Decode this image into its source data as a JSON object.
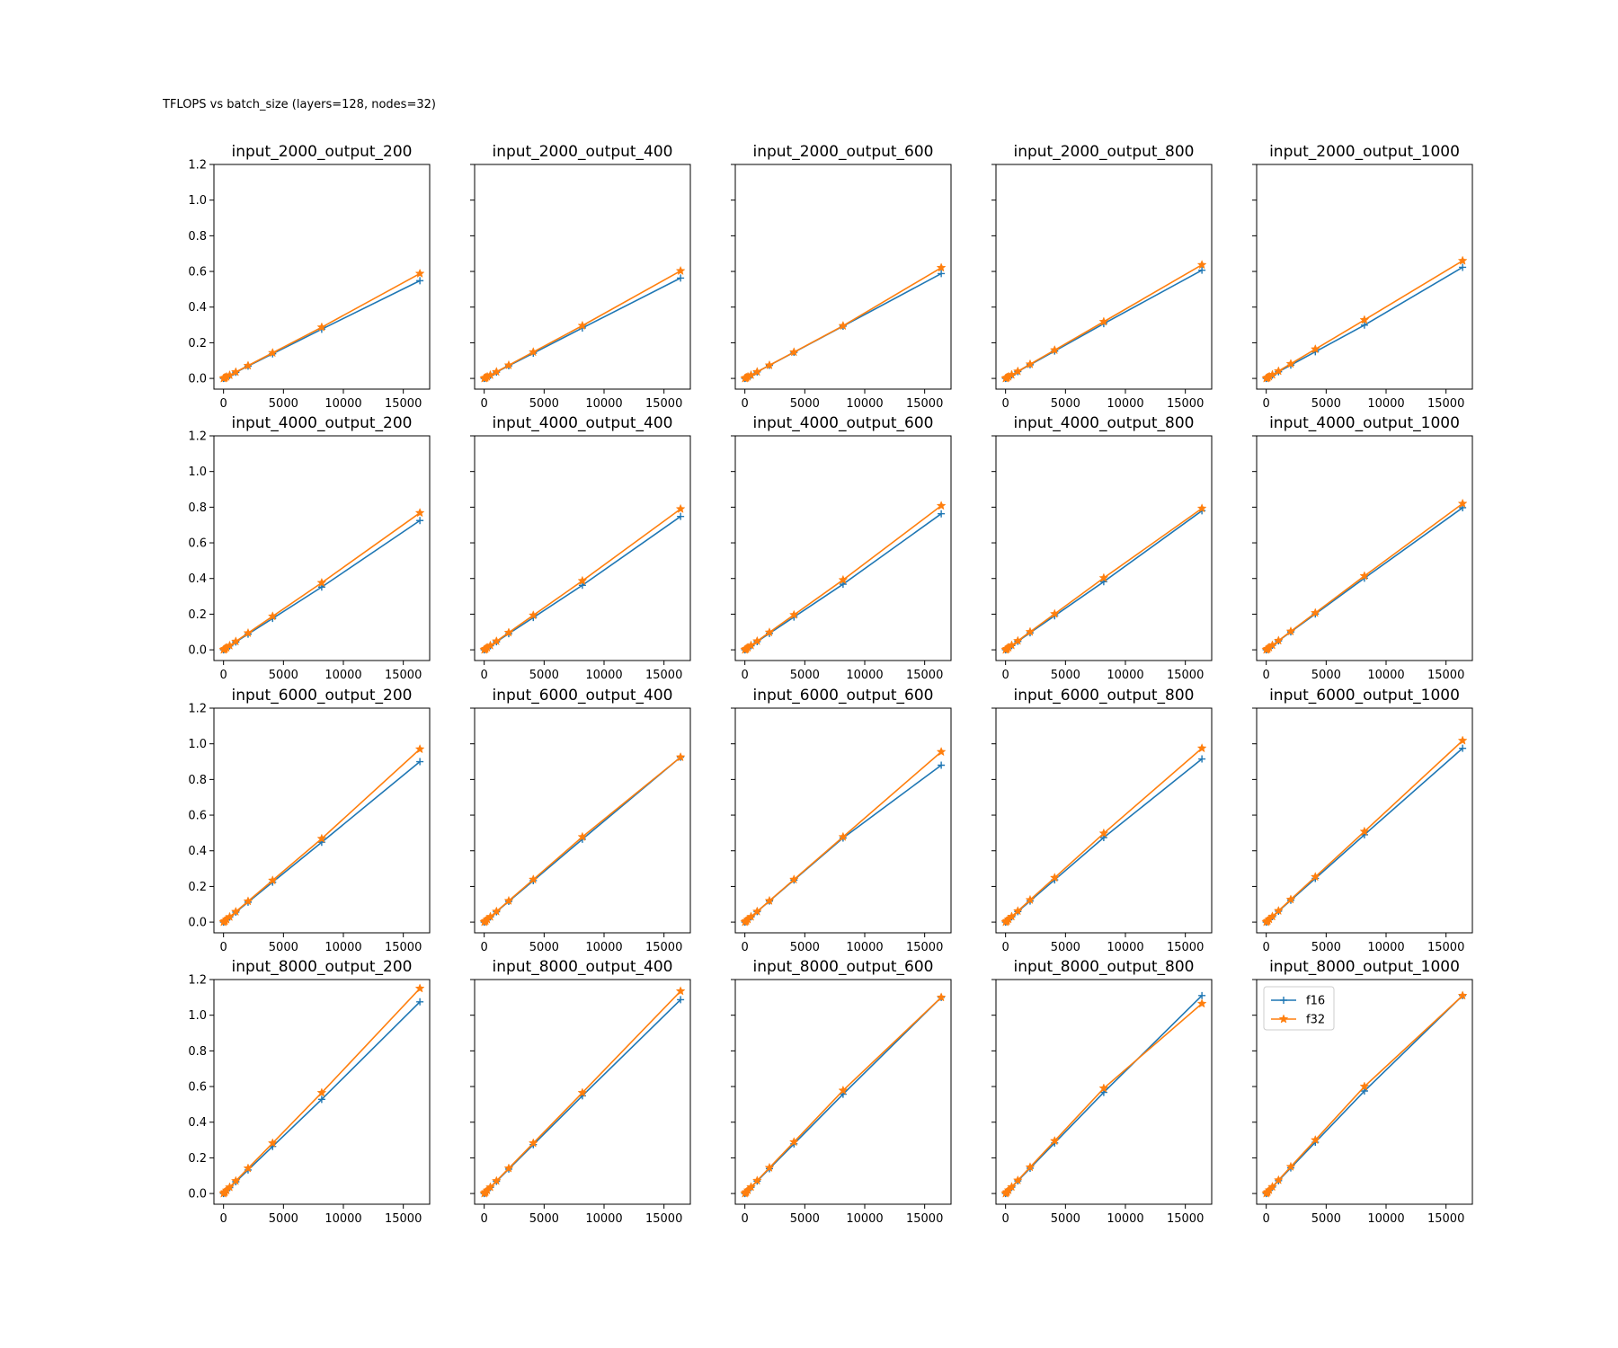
{
  "figure": {
    "suptitle": "TFLOPS vs batch_size (layers=128, nodes=32)"
  },
  "chart_data": {
    "type": "line",
    "grid": false,
    "layout": "4 rows x 5 columns of subplots, shared y axis per row",
    "x": [
      1,
      64,
      128,
      256,
      512,
      1024,
      2048,
      4096,
      8192,
      16384
    ],
    "xlim": [
      -800,
      17200
    ],
    "ylim": [
      -0.06,
      1.2
    ],
    "xticks": [
      0,
      5000,
      10000,
      15000
    ],
    "xtick_labels": [
      "0",
      "5000",
      "10000",
      "15000"
    ],
    "yticks": [
      0.0,
      0.2,
      0.4,
      0.6,
      0.8,
      1.0,
      1.2
    ],
    "ytick_labels": [
      "0.0",
      "0.2",
      "0.4",
      "0.6",
      "0.8",
      "1.0",
      "1.2"
    ],
    "legend": {
      "placement": "upper-left",
      "subplot": "input_8000_output_1000",
      "entries": [
        {
          "label": "f16",
          "color": "#1f77b4",
          "marker": "+"
        },
        {
          "label": "f32",
          "color": "#ff7f0e",
          "marker": "*"
        }
      ]
    },
    "series_names": [
      "f16",
      "f32"
    ],
    "colors": {
      "f16": "#1f77b4",
      "f32": "#ff7f0e"
    },
    "subplots": [
      {
        "title": "input_2000_output_200",
        "f16_end": 0.548,
        "f32_end": 0.588,
        "f16_mid": 0.276,
        "f32_mid": 0.287
      },
      {
        "title": "input_2000_output_400",
        "f16_end": 0.563,
        "f32_end": 0.603,
        "f16_mid": 0.283,
        "f32_mid": 0.296
      },
      {
        "title": "input_2000_output_600",
        "f16_end": 0.588,
        "f32_end": 0.621,
        "f16_mid": 0.293,
        "f32_mid": 0.295
      },
      {
        "title": "input_2000_output_800",
        "f16_end": 0.607,
        "f32_end": 0.637,
        "f16_mid": 0.307,
        "f32_mid": 0.318
      },
      {
        "title": "input_2000_output_1000",
        "f16_end": 0.623,
        "f32_end": 0.66,
        "f16_mid": 0.299,
        "f32_mid": 0.328
      },
      {
        "title": "input_4000_output_200",
        "f16_end": 0.725,
        "f32_end": 0.768,
        "f16_mid": 0.352,
        "f32_mid": 0.376
      },
      {
        "title": "input_4000_output_400",
        "f16_end": 0.748,
        "f32_end": 0.79,
        "f16_mid": 0.362,
        "f32_mid": 0.387
      },
      {
        "title": "input_4000_output_600",
        "f16_end": 0.763,
        "f32_end": 0.808,
        "f16_mid": 0.368,
        "f32_mid": 0.392
      },
      {
        "title": "input_4000_output_800",
        "f16_end": 0.78,
        "f32_end": 0.793,
        "f16_mid": 0.382,
        "f32_mid": 0.403
      },
      {
        "title": "input_4000_output_1000",
        "f16_end": 0.797,
        "f32_end": 0.82,
        "f16_mid": 0.402,
        "f32_mid": 0.414
      },
      {
        "title": "input_6000_output_200",
        "f16_end": 0.9,
        "f32_end": 0.97,
        "f16_mid": 0.448,
        "f32_mid": 0.468
      },
      {
        "title": "input_6000_output_400",
        "f16_end": 0.925,
        "f32_end": 0.925,
        "f16_mid": 0.465,
        "f32_mid": 0.478
      },
      {
        "title": "input_6000_output_600",
        "f16_end": 0.88,
        "f32_end": 0.955,
        "f16_mid": 0.472,
        "f32_mid": 0.478
      },
      {
        "title": "input_6000_output_800",
        "f16_end": 0.915,
        "f32_end": 0.975,
        "f16_mid": 0.474,
        "f32_mid": 0.498
      },
      {
        "title": "input_6000_output_1000",
        "f16_end": 0.975,
        "f32_end": 1.018,
        "f16_mid": 0.49,
        "f32_mid": 0.508
      },
      {
        "title": "input_8000_output_200",
        "f16_end": 1.075,
        "f32_end": 1.15,
        "f16_mid": 0.528,
        "f32_mid": 0.565
      },
      {
        "title": "input_8000_output_400",
        "f16_end": 1.087,
        "f32_end": 1.135,
        "f16_mid": 0.548,
        "f32_mid": 0.565
      },
      {
        "title": "input_8000_output_600",
        "f16_end": 1.1,
        "f32_end": 1.1,
        "f16_mid": 0.557,
        "f32_mid": 0.578
      },
      {
        "title": "input_8000_output_800",
        "f16_end": 1.11,
        "f32_end": 1.065,
        "f16_mid": 0.567,
        "f32_mid": 0.59
      },
      {
        "title": "input_8000_output_1000",
        "f16_end": 1.11,
        "f32_end": 1.11,
        "f16_mid": 0.575,
        "f32_mid": 0.6
      }
    ]
  }
}
